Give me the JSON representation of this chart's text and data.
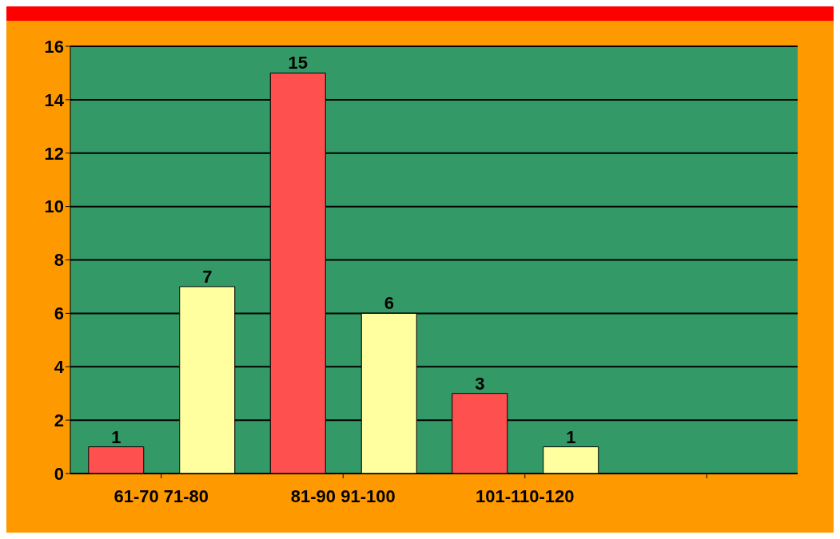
{
  "chart_data": {
    "type": "bar",
    "categories": [
      "61-70 71-80",
      "81-90 91-100",
      "101-110-120",
      null
    ],
    "series": [
      {
        "color": "#ff5050",
        "values": [
          1,
          15,
          3,
          null
        ]
      },
      {
        "color": "#ffffa0",
        "values": [
          7,
          6,
          1,
          null
        ]
      }
    ],
    "ylim": [
      0,
      16
    ],
    "yticks": [
      0,
      2,
      4,
      6,
      8,
      10,
      12,
      14,
      16
    ],
    "grid": "y",
    "data_labels": true
  }
}
